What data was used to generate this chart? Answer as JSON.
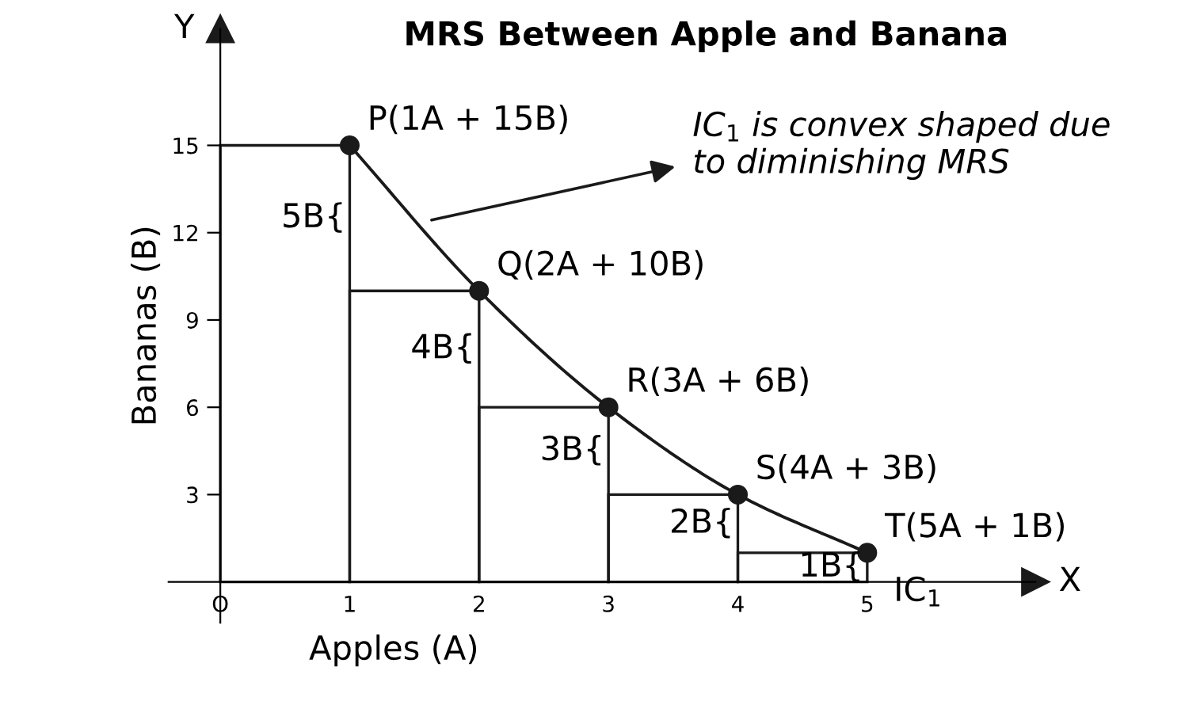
{
  "chart_data": {
    "type": "line",
    "title": "MRS Between Apple and Banana",
    "xlabel": "Apples (A)",
    "ylabel": "Bananas (B)",
    "xlim": [
      -0.4,
      6.3
    ],
    "ylim": [
      -1.4,
      19
    ],
    "xticks": [
      {
        "value": 0,
        "label": "O"
      },
      1,
      2,
      3,
      4,
      5
    ],
    "yticks": [
      3,
      6,
      9,
      12,
      15
    ],
    "grid": false,
    "legend": false,
    "series": [
      {
        "name": "IC$_{1}$",
        "color": "#1a1a1a",
        "marker": "circle",
        "x": [
          1,
          2,
          3,
          4,
          5
        ],
        "values": [
          15,
          10,
          6,
          3,
          1
        ],
        "value_labels": [
          "P(1A + 15B)",
          "Q(2A + 10B)",
          "R(3A + 6B)",
          "S(4A + 3B)",
          "T(5A + 1B)"
        ]
      },
      {
        "type": "bar",
        "color": "#1a1a1a",
        "x": [
          0.5,
          1.5,
          2.5,
          3.5,
          4.5
        ],
        "values": [
          15,
          10,
          6,
          3,
          1
        ]
      }
    ],
    "annotations": [
      {
        "text": "IC$_{1}$ is convex shaped due\nto diminishing MRS",
        "x": 1.6,
        "y": 12.4
      },
      "5B{",
      "4B{",
      "3B{",
      "2B{",
      "1B{",
      {
        "text": "X",
        "x": 6.3,
        "y": 0
      },
      {
        "text": "Y",
        "x": 0,
        "y": 19
      }
    ]
  }
}
